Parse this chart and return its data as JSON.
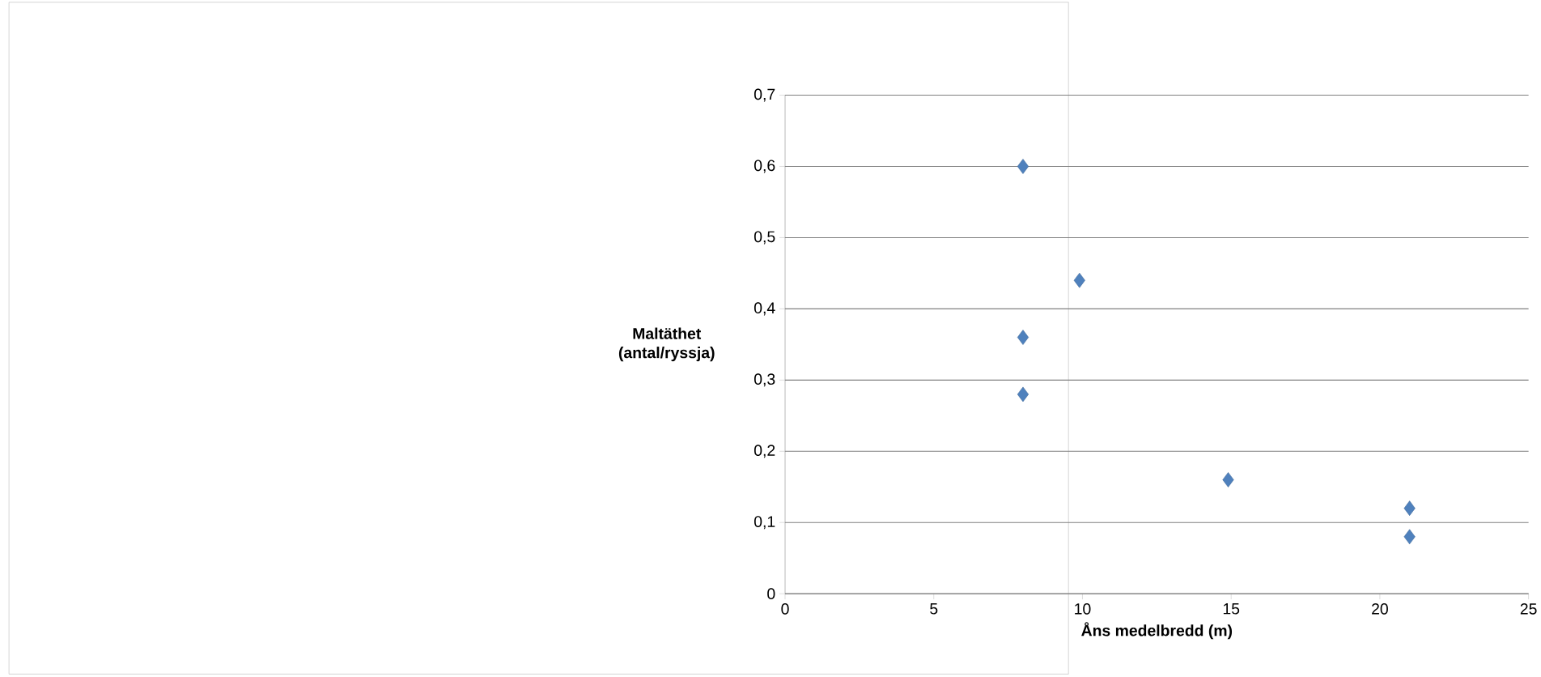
{
  "chart_data": {
    "type": "scatter",
    "xlabel": "Åns medelbredd (m)",
    "ylabel": "Maltäthet (antal/ryssja)",
    "x": [
      8,
      9.9,
      8,
      8,
      14.9,
      21,
      21
    ],
    "values": [
      0.6,
      0.44,
      0.36,
      0.28,
      0.16,
      0.12,
      0.08
    ],
    "color": "#4f81bd",
    "marker": "diamond",
    "grid": "y",
    "xlim": [
      0,
      25
    ],
    "xticks": [
      0,
      5,
      10,
      15,
      20,
      25
    ],
    "ylim": [
      0,
      0.7
    ],
    "yticks": [
      0,
      {
        "value": 0.1,
        "label": "0,1"
      },
      {
        "value": 0.2,
        "label": "0,2"
      },
      {
        "value": 0.3,
        "label": "0,3"
      },
      {
        "value": 0.4,
        "label": "0,4"
      },
      {
        "value": 0.5,
        "label": "0,5"
      },
      {
        "value": 0.6,
        "label": "0,6"
      },
      {
        "value": 0.7,
        "label": "0,7"
      }
    ]
  }
}
